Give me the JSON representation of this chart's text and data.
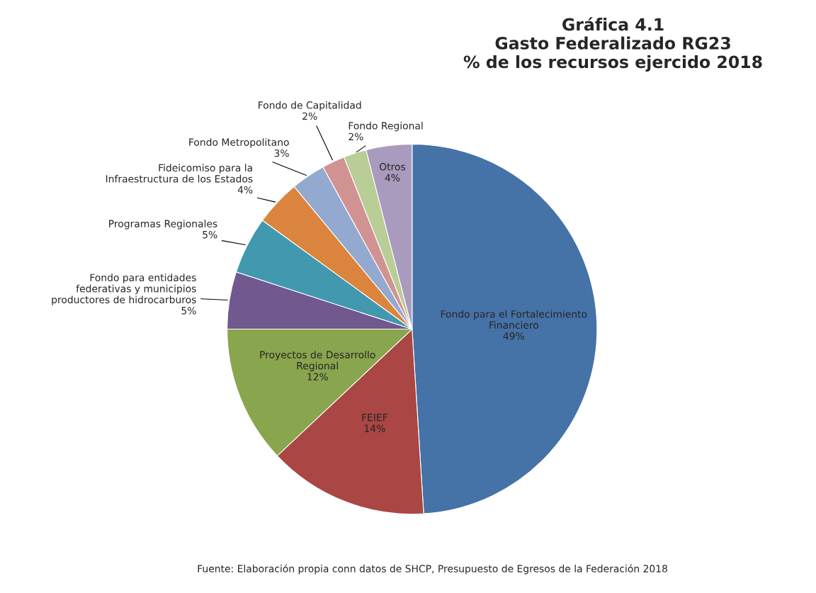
{
  "chart_data": {
    "type": "pie",
    "title": "Gráfica 4.1\nGasto Federalizado RG23\n% de los recursos ejercido 2018",
    "categories": [
      "Fondo para el Fortalecimiento\nFinanciero",
      "FEIEF",
      "Proyectos de Desarrollo\nRegional",
      "Fondo para entidades\nfederativas y municipios\nproductores de hidrocarburos",
      "Programas Regionales",
      "Fideicomiso para la\nInfraestructura de los Estados",
      "Fondo Metropolitano",
      "Fondo de Capitalidad",
      "Fondo Regional",
      "Otros"
    ],
    "values": [
      49,
      14,
      12,
      5,
      5,
      4,
      3,
      2,
      2,
      4
    ],
    "value_labels": [
      "49%",
      "14%",
      "12%",
      "5%",
      "5%",
      "4%",
      "3%",
      "2%",
      "2%",
      "4%"
    ],
    "colors": [
      "#4572a7",
      "#aa4643",
      "#89a54e",
      "#71588f",
      "#4198af",
      "#db843d",
      "#93a9cf",
      "#d19392",
      "#b9cd96",
      "#a99bbd"
    ],
    "annotations": [
      "Fuente: Elaboración propia conn datos de SHCP, Presupuesto de Egresos de la Federación 2018"
    ]
  }
}
